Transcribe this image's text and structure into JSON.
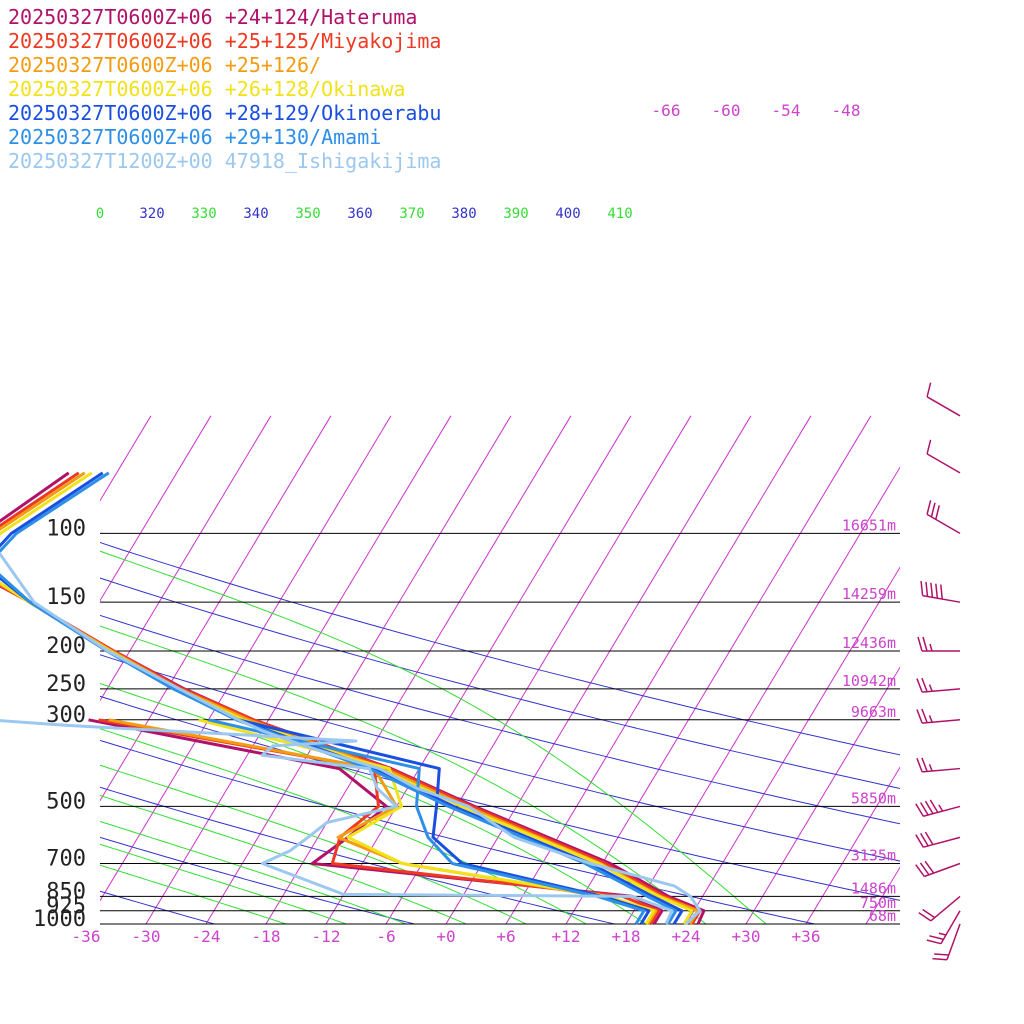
{
  "legend": [
    {
      "label": "20250327T0600Z+06 +24+124/Hateruma",
      "color": "#b0126a"
    },
    {
      "label": "20250327T0600Z+06 +25+125/Miyakojima",
      "color": "#ee3a22"
    },
    {
      "label": "20250327T0600Z+06 +25+126/",
      "color": "#f39c12"
    },
    {
      "label": "20250327T0600Z+06 +26+128/Okinawa",
      "color": "#f2e21a"
    },
    {
      "label": "20250327T0600Z+06 +28+129/Okinoerabu",
      "color": "#1a4fe0"
    },
    {
      "label": "20250327T0600Z+06 +29+130/Amami",
      "color": "#2e8fe6"
    },
    {
      "label": "20250327T1200Z+00 47918_Ishigakijima",
      "color": "#9cc8ef"
    }
  ],
  "chart_data": {
    "type": "line",
    "subtype": "skew-T log-p diagram",
    "pressure_ticks": [
      {
        "p": 100,
        "label": "100",
        "height": "16651m"
      },
      {
        "p": 150,
        "label": "150",
        "height": "14259m"
      },
      {
        "p": 200,
        "label": "200",
        "height": "12436m"
      },
      {
        "p": 250,
        "label": "250",
        "height": "10942m"
      },
      {
        "p": 300,
        "label": "300",
        "height": "9663m"
      },
      {
        "p": 500,
        "label": "500",
        "height": "5850m"
      },
      {
        "p": 700,
        "label": "700",
        "height": "3135m"
      },
      {
        "p": 850,
        "label": "850",
        "height": "1486m"
      },
      {
        "p": 925,
        "label": "925",
        "height": "750m"
      },
      {
        "p": 1000,
        "label": "1000",
        "height": "68m"
      }
    ],
    "temperature_ticks": [
      "-36",
      "-30",
      "-24",
      "-18",
      "-12",
      "-6",
      "+0",
      "+6",
      "+12",
      "+18",
      "+24",
      "+30",
      "+36"
    ],
    "isotherm_top_labels": [
      "-66",
      "-60",
      "-54",
      "-48"
    ],
    "theta_labels": [
      {
        "text": "0",
        "color": "#33dd33"
      },
      {
        "text": "320",
        "color": "#3333cc"
      },
      {
        "text": "330",
        "color": "#33dd33"
      },
      {
        "text": "340",
        "color": "#3333cc"
      },
      {
        "text": "350",
        "color": "#33dd33"
      },
      {
        "text": "360",
        "color": "#3333cc"
      },
      {
        "text": "370",
        "color": "#33dd33"
      },
      {
        "text": "380",
        "color": "#3333cc"
      },
      {
        "text": "390",
        "color": "#33dd33"
      },
      {
        "text": "400",
        "color": "#3333cc"
      },
      {
        "text": "410",
        "color": "#33dd33"
      }
    ],
    "xlim": [
      -40,
      40
    ],
    "ylim_hpa": [
      1000,
      100
    ],
    "colors": {
      "isotherm": "#cc33cc",
      "dry_adiabat": "#3333cc",
      "moist_adiabat": "#33dd33",
      "isobar": "#000000",
      "tick_label": "#cc44cc",
      "wind_barb": "#b0126a"
    },
    "series": [
      {
        "name": "20250327T0600Z+06 +24+124/Hateruma",
        "color": "#b0126a",
        "temperature": [
          [
            1000,
            25.2
          ],
          [
            925,
            25.0
          ],
          [
            850,
            20.6
          ],
          [
            700,
            12.8
          ],
          [
            500,
            -4.2
          ],
          [
            400,
            -14.8
          ],
          [
            300,
            -31.5
          ],
          [
            250,
            -40.3
          ],
          [
            200,
            -49.6
          ],
          [
            150,
            -60.9
          ],
          [
            120,
            -70.2
          ],
          [
            100,
            -69.8
          ],
          [
            70,
            -64.8
          ]
        ],
        "dewpoint": [
          [
            1000,
            20.8
          ],
          [
            925,
            20.8
          ],
          [
            850,
            17.0
          ],
          [
            700,
            -17.0
          ],
          [
            600,
            -15.0
          ],
          [
            500,
            -13.0
          ],
          [
            400,
            -20.0
          ],
          [
            300,
            -48.0
          ]
        ]
      },
      {
        "name": "20250327T0600Z+06 +25+125/Miyakojima",
        "color": "#ee3a22",
        "temperature": [
          [
            1000,
            24.6
          ],
          [
            925,
            24.6
          ],
          [
            850,
            20.2
          ],
          [
            700,
            12.3
          ],
          [
            500,
            -4.5
          ],
          [
            400,
            -15.0
          ],
          [
            300,
            -31.5
          ],
          [
            250,
            -40.5
          ],
          [
            200,
            -49.6
          ],
          [
            150,
            -60.9
          ],
          [
            120,
            -70.0
          ],
          [
            100,
            -69.2
          ],
          [
            70,
            -63.8
          ]
        ],
        "dewpoint": [
          [
            1000,
            20.5
          ],
          [
            925,
            20.5
          ],
          [
            850,
            16.0
          ],
          [
            700,
            -15.0
          ],
          [
            600,
            -15.8
          ],
          [
            500,
            -13.8
          ],
          [
            400,
            -16.5
          ],
          [
            300,
            -47.0
          ]
        ]
      },
      {
        "name": "20250327T0600Z+06 +25+126/",
        "color": "#f39c12",
        "temperature": [
          [
            1000,
            24.4
          ],
          [
            925,
            24.4
          ],
          [
            850,
            19.8
          ],
          [
            700,
            11.8
          ],
          [
            500,
            -5.0
          ],
          [
            400,
            -15.5
          ],
          [
            300,
            -32.0
          ],
          [
            250,
            -40.8
          ],
          [
            200,
            -49.8
          ],
          [
            150,
            -60.9
          ],
          [
            120,
            -69.5
          ],
          [
            100,
            -68.7
          ],
          [
            70,
            -63.2
          ]
        ],
        "dewpoint": [
          [
            1000,
            20.2
          ],
          [
            925,
            20.2
          ],
          [
            850,
            14.0
          ],
          [
            700,
            -8.0
          ],
          [
            600,
            -16.0
          ],
          [
            500,
            -12.0
          ],
          [
            400,
            -16.5
          ],
          [
            300,
            -46.0
          ]
        ]
      },
      {
        "name": "20250327T0600Z+06 +26+128/Okinawa",
        "color": "#f2e21a",
        "temperature": [
          [
            1000,
            23.8
          ],
          [
            925,
            23.8
          ],
          [
            850,
            19.6
          ],
          [
            700,
            11.6
          ],
          [
            500,
            -5.5
          ],
          [
            400,
            -16.0
          ],
          [
            300,
            -32.5
          ],
          [
            250,
            -41.0
          ],
          [
            200,
            -50.0
          ],
          [
            150,
            -61.0
          ],
          [
            120,
            -69.0
          ],
          [
            100,
            -68.0
          ],
          [
            70,
            -62.5
          ]
        ],
        "dewpoint": [
          [
            1000,
            20.0
          ],
          [
            925,
            20.0
          ],
          [
            850,
            14.5
          ],
          [
            700,
            -8.0
          ],
          [
            600,
            -15.0
          ],
          [
            500,
            -11.5
          ],
          [
            400,
            -15.0
          ],
          [
            300,
            -37.0
          ]
        ]
      },
      {
        "name": "20250327T0600Z+06 +28+129/Okinoerabu",
        "color": "#1a4fe0",
        "temperature": [
          [
            1000,
            22.8
          ],
          [
            925,
            22.8
          ],
          [
            850,
            19.0
          ],
          [
            700,
            10.8
          ],
          [
            500,
            -6.3
          ],
          [
            400,
            -16.5
          ],
          [
            300,
            -33.0
          ],
          [
            250,
            -41.2
          ],
          [
            200,
            -50.2
          ],
          [
            150,
            -60.9
          ],
          [
            120,
            -67.9
          ],
          [
            100,
            -66.9
          ],
          [
            70,
            -61.4
          ]
        ],
        "dewpoint": [
          [
            1000,
            19.5
          ],
          [
            925,
            19.5
          ],
          [
            850,
            14.0
          ],
          [
            700,
            -2.0
          ],
          [
            600,
            -6.5
          ],
          [
            500,
            -8.0
          ],
          [
            400,
            -10.0
          ],
          [
            300,
            -33.0
          ]
        ]
      },
      {
        "name": "20250327T0600Z+06 +29+130/Amami",
        "color": "#2e8fe6",
        "temperature": [
          [
            1000,
            22.2
          ],
          [
            925,
            22.2
          ],
          [
            850,
            18.5
          ],
          [
            700,
            10.3
          ],
          [
            500,
            -6.8
          ],
          [
            400,
            -17.0
          ],
          [
            300,
            -33.2
          ],
          [
            250,
            -41.4
          ],
          [
            200,
            -50.3
          ],
          [
            150,
            -60.9
          ],
          [
            120,
            -67.4
          ],
          [
            100,
            -66.4
          ],
          [
            70,
            -60.8
          ]
        ],
        "dewpoint": [
          [
            1000,
            19.0
          ],
          [
            925,
            19.0
          ],
          [
            850,
            13.5
          ],
          [
            700,
            -3.0
          ],
          [
            600,
            -7.0
          ],
          [
            500,
            -10.0
          ],
          [
            400,
            -12.0
          ],
          [
            300,
            -36.0
          ]
        ]
      },
      {
        "name": "20250327T1200Z+00 47918_Ishigakijima",
        "color": "#9cc8ef",
        "temperature": [
          [
            1000,
            24.0
          ],
          [
            925,
            24.6
          ],
          [
            850,
            22.8
          ],
          [
            800,
            20.6
          ],
          [
            700,
            10.8
          ],
          [
            600,
            1.6
          ],
          [
            500,
            -4.8
          ],
          [
            450,
            -11.0
          ],
          [
            400,
            -16.0
          ],
          [
            350,
            -24.8
          ],
          [
            320,
            -30.0
          ],
          [
            300,
            -33.0
          ],
          [
            250,
            -40.8
          ],
          [
            200,
            -50.2
          ],
          [
            150,
            -60.5
          ],
          [
            100,
            -69.5
          ]
        ],
        "dewpoint": [
          [
            1000,
            22.0
          ],
          [
            925,
            21.8
          ],
          [
            850,
            17.0
          ],
          [
            840,
            -12.0
          ],
          [
            700,
            -22.0
          ],
          [
            650,
            -20.0
          ],
          [
            600,
            -19.0
          ],
          [
            550,
            -18.0
          ],
          [
            500,
            -12.0
          ],
          [
            450,
            -15.0
          ],
          [
            400,
            -17.0
          ],
          [
            370,
            -28.5
          ],
          [
            350,
            -28.0
          ],
          [
            340,
            -20.0
          ],
          [
            310,
            -50.0
          ],
          [
            300,
            -58.0
          ],
          [
            250,
            -70.5
          ],
          [
            200,
            -81.0
          ],
          [
            150,
            -80.0
          ],
          [
            100,
            -84.0
          ]
        ]
      }
    ],
    "wind_barbs": [
      {
        "p": 1000,
        "speed_kt": 20,
        "dir_deg": 200
      },
      {
        "p": 925,
        "speed_kt": 25,
        "dir_deg": 210
      },
      {
        "p": 850,
        "speed_kt": 20,
        "dir_deg": 230
      },
      {
        "p": 700,
        "speed_kt": 30,
        "dir_deg": 250
      },
      {
        "p": 600,
        "speed_kt": 30,
        "dir_deg": 255
      },
      {
        "p": 500,
        "speed_kt": 45,
        "dir_deg": 255
      },
      {
        "p": 400,
        "speed_kt": 25,
        "dir_deg": 265
      },
      {
        "p": 300,
        "speed_kt": 25,
        "dir_deg": 265
      },
      {
        "p": 250,
        "speed_kt": 25,
        "dir_deg": 265
      },
      {
        "p": 200,
        "speed_kt": 25,
        "dir_deg": 270
      },
      {
        "p": 150,
        "speed_kt": 50,
        "dir_deg": 280
      },
      {
        "p": 100,
        "speed_kt": 30,
        "dir_deg": 300
      },
      {
        "p": 70,
        "speed_kt": 10,
        "dir_deg": 300
      },
      {
        "p": 50,
        "speed_kt": 10,
        "dir_deg": 300
      }
    ]
  }
}
